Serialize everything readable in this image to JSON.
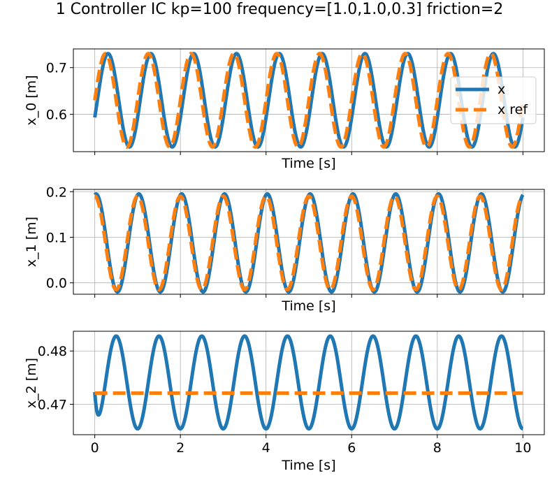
{
  "figure": {
    "title": "1 Controller IC kp=100 frequency=[1.0,1.0,0.3] friction=2"
  },
  "colors": {
    "x": "#1f77b4",
    "x_ref": "#ff7f0e",
    "grid": "#b0b0b0"
  },
  "legend": {
    "x_label": "x",
    "x_ref_label": "x ref",
    "location": "right, first subplot"
  },
  "chart_data": [
    {
      "type": "line",
      "ylabel": "x_0 [m]",
      "xlabel": "Time [s]",
      "xlim": [
        -0.5,
        10.5
      ],
      "ylim": [
        0.52,
        0.74
      ],
      "yticks": [
        {
          "v": 0.6,
          "label": "0.6"
        },
        {
          "v": 0.7,
          "label": "0.7"
        }
      ],
      "xticks": [
        0,
        2,
        4,
        6,
        8,
        10
      ],
      "xtick_labels_shown": false,
      "grid": true,
      "legend": true,
      "series": [
        {
          "name": "x",
          "key": "x",
          "model": "sine",
          "params": {
            "offset": 0.63,
            "amp": 0.1,
            "freq": 1.0,
            "phase": 0.06,
            "t0": 0.0,
            "t1": 10.0
          }
        },
        {
          "name": "x ref",
          "key": "x_ref",
          "model": "sine",
          "params": {
            "offset": 0.63,
            "amp": 0.1,
            "freq": 1.0,
            "phase": 0.0,
            "t0": 0.0,
            "t1": 10.0
          }
        }
      ]
    },
    {
      "type": "line",
      "ylabel": "x_1 [m]",
      "xlabel": "Time [s]",
      "xlim": [
        -0.5,
        10.5
      ],
      "ylim": [
        -0.025,
        0.205
      ],
      "yticks": [
        {
          "v": 0.0,
          "label": "0.0"
        },
        {
          "v": 0.1,
          "label": "0.1"
        },
        {
          "v": 0.2,
          "label": "0.2"
        }
      ],
      "xticks": [
        0,
        2,
        4,
        6,
        8,
        10
      ],
      "xtick_labels_shown": false,
      "grid": true,
      "legend": false,
      "series": [
        {
          "name": "x",
          "key": "x",
          "model": "cosine",
          "params": {
            "offset": 0.0875,
            "amp": 0.1075,
            "freq": 1.0,
            "phase": 0.03,
            "t0": 0.0,
            "t1": 10.0
          }
        },
        {
          "name": "x ref",
          "key": "x_ref",
          "model": "cosine",
          "params": {
            "offset": 0.0875,
            "amp": 0.1025,
            "freq": 1.0,
            "phase": 0.0,
            "t0": 0.0,
            "t1": 10.0
          }
        }
      ]
    },
    {
      "type": "line",
      "ylabel": "x_2 [m]",
      "xlabel": "Time [s]",
      "xlim": [
        -0.5,
        10.5
      ],
      "ylim": [
        0.4643,
        0.4837
      ],
      "yticks": [
        {
          "v": 0.47,
          "label": "0.47"
        },
        {
          "v": 0.48,
          "label": "0.48"
        }
      ],
      "xticks": [
        0,
        2,
        4,
        6,
        8,
        10
      ],
      "xtick_labels_shown": true,
      "grid": true,
      "legend": false,
      "series": [
        {
          "name": "x",
          "key": "x",
          "model": "oscillation",
          "params": {
            "offset": 0.4741,
            "amp": 0.0087,
            "freq": 1.0,
            "t0": 0.0,
            "t1": 10.0,
            "start": 0.4723
          }
        },
        {
          "name": "x ref",
          "key": "x_ref",
          "model": "constant",
          "params": {
            "value": 0.4721,
            "t0": 0.0,
            "t1": 10.0
          }
        }
      ]
    }
  ]
}
